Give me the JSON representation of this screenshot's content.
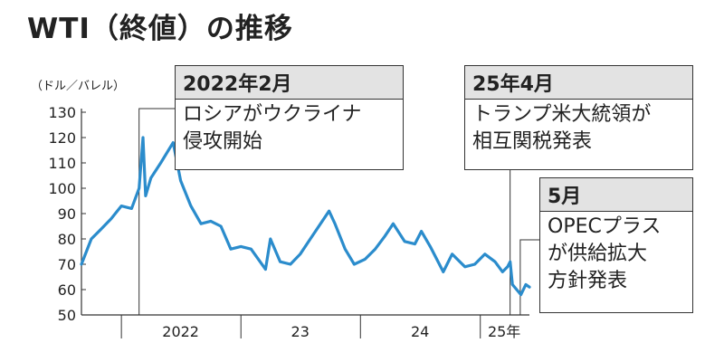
{
  "title": "WTI（終値）の推移",
  "unit_label": "（ドル／バレル）",
  "callouts": [
    {
      "head": "2022年2月",
      "lines": [
        "ロシアがウクライナ",
        "侵攻開始"
      ]
    },
    {
      "head": "25年4月",
      "lines": [
        "トランプ米大統領が",
        "相互関税発表"
      ]
    },
    {
      "head": "5月",
      "lines": [
        "OPECプラス",
        "が供給拡大",
        "方針発表"
      ]
    }
  ],
  "colors": {
    "line": "#2b8ccc",
    "text": "#222222",
    "callout_head_bg": "#e3e3e3"
  },
  "chart_data": {
    "type": "line",
    "title": "WTI（終値）の推移",
    "ylabel": "（ドル／バレル）",
    "xlabel": "",
    "ylim": [
      50,
      130
    ],
    "yticks": [
      50,
      60,
      70,
      80,
      90,
      100,
      110,
      120,
      130
    ],
    "xlim": [
      "2021-09-01",
      "2025-05-31"
    ],
    "x_ticks": [
      {
        "label": "2022",
        "at": "2022-07-01"
      },
      {
        "label": "23",
        "at": "2023-07-01"
      },
      {
        "label": "24",
        "at": "2024-07-01"
      },
      {
        "label": "25年",
        "at": "2025-03-15"
      }
    ],
    "x_separators": [
      "2022-01-01",
      "2023-01-01",
      "2024-01-01",
      "2025-01-01"
    ],
    "events": [
      {
        "date": "2022-02-24",
        "label": "2022年2月"
      },
      {
        "date": "2025-04-02",
        "label": "25年4月"
      },
      {
        "date": "2025-05-03",
        "label": "5月"
      }
    ],
    "series": [
      {
        "x": [
          "2021-09-01",
          "2021-10-01",
          "2021-11-01",
          "2021-12-01",
          "2022-01-01",
          "2022-02-01",
          "2022-02-24",
          "2022-03-08",
          "2022-03-16",
          "2022-04-01",
          "2022-05-01",
          "2022-06-08",
          "2022-07-01",
          "2022-08-01",
          "2022-09-01",
          "2022-10-01",
          "2022-11-01",
          "2022-12-01",
          "2023-01-01",
          "2023-02-01",
          "2023-03-17",
          "2023-04-01",
          "2023-05-01",
          "2023-06-01",
          "2023-07-01",
          "2023-08-01",
          "2023-09-27",
          "2023-10-15",
          "2023-11-15",
          "2023-12-13",
          "2024-01-15",
          "2024-02-15",
          "2024-03-15",
          "2024-04-10",
          "2024-05-15",
          "2024-06-15",
          "2024-07-05",
          "2024-08-01",
          "2024-09-10",
          "2024-10-07",
          "2024-11-15",
          "2024-12-15",
          "2025-01-15",
          "2025-02-15",
          "2025-03-10",
          "2025-03-25",
          "2025-04-02",
          "2025-04-09",
          "2025-05-05",
          "2025-05-20",
          "2025-05-31"
        ],
        "y": [
          70,
          80,
          84,
          88,
          93,
          92,
          100,
          120,
          97,
          104,
          110,
          118,
          103,
          93,
          86,
          87,
          85,
          76,
          77,
          76,
          68,
          80,
          71,
          70,
          74,
          80,
          91,
          86,
          76,
          70,
          72,
          76,
          81,
          86,
          79,
          78,
          83,
          77,
          67,
          74,
          69,
          70,
          74,
          71,
          67,
          69,
          71,
          62,
          58,
          62,
          61
        ]
      }
    ]
  }
}
